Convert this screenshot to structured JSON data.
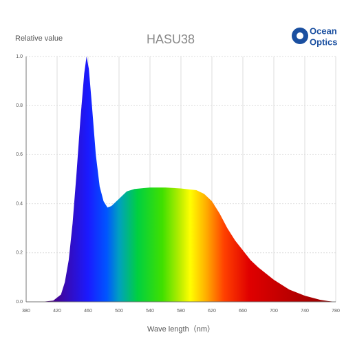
{
  "chart_data": {
    "type": "area",
    "title": "HASU38",
    "y_label": "Relative value",
    "x_label": "Wave length（nm）",
    "logo_lines": [
      "Ocean",
      "Optics"
    ],
    "x": [
      380,
      400,
      415,
      425,
      430,
      435,
      440,
      445,
      450,
      455,
      458,
      461,
      465,
      470,
      475,
      480,
      485,
      490,
      500,
      510,
      520,
      540,
      560,
      580,
      600,
      610,
      620,
      630,
      640,
      650,
      660,
      670,
      680,
      700,
      720,
      740,
      760,
      770,
      780
    ],
    "values": [
      0,
      0,
      0.005,
      0.03,
      0.08,
      0.17,
      0.32,
      0.52,
      0.74,
      0.93,
      1.0,
      0.95,
      0.8,
      0.6,
      0.47,
      0.41,
      0.385,
      0.39,
      0.42,
      0.45,
      0.46,
      0.466,
      0.466,
      0.462,
      0.455,
      0.44,
      0.41,
      0.36,
      0.3,
      0.25,
      0.21,
      0.17,
      0.14,
      0.09,
      0.05,
      0.025,
      0.008,
      0.003,
      0
    ],
    "xlim": [
      380,
      780
    ],
    "xticks": [
      380,
      420,
      460,
      500,
      540,
      580,
      620,
      660,
      700,
      740,
      780
    ],
    "ylim": [
      0,
      1
    ],
    "yticks": [
      {
        "value": 0,
        "label": "0.0"
      },
      0.2,
      0.4,
      0.6,
      0.8,
      {
        "value": 1,
        "label": "1.0"
      }
    ],
    "grid": true
  }
}
